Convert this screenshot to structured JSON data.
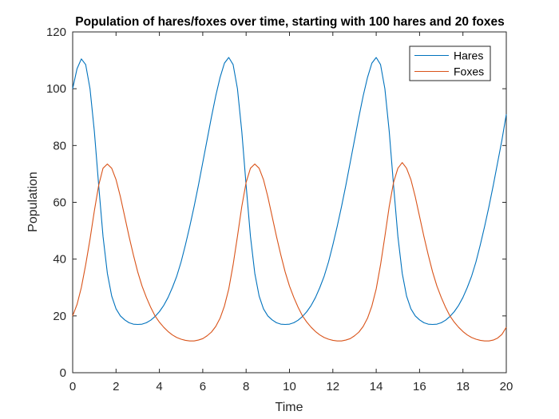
{
  "chart_data": {
    "type": "line",
    "title": "Population of hares/foxes over time, starting with 100 hares and 20 foxes",
    "xlabel": "Time",
    "ylabel": "Population",
    "xlim": [
      0,
      20
    ],
    "ylim": [
      0,
      120
    ],
    "xticks": [
      "0",
      "2",
      "4",
      "6",
      "8",
      "10",
      "12",
      "14",
      "16",
      "18",
      "20"
    ],
    "yticks": [
      "0",
      "20",
      "40",
      "60",
      "80",
      "100",
      "120"
    ],
    "grid": false,
    "legend_position": "top-right",
    "x": [
      0,
      0.2,
      0.4,
      0.6,
      0.8,
      1.0,
      1.2,
      1.4,
      1.6,
      1.8,
      2.0,
      2.2,
      2.4,
      2.6,
      2.8,
      3.0,
      3.2,
      3.4,
      3.6,
      3.8,
      4.0,
      4.2,
      4.4,
      4.6,
      4.8,
      5.0,
      5.2,
      5.4,
      5.6,
      5.8,
      6.0,
      6.2,
      6.4,
      6.6,
      6.8,
      7.0,
      7.2,
      7.4,
      7.6,
      7.8,
      8.0,
      8.2,
      8.4,
      8.6,
      8.8,
      9.0,
      9.2,
      9.4,
      9.6,
      9.8,
      10.0,
      10.2,
      10.4,
      10.6,
      10.8,
      11.0,
      11.2,
      11.4,
      11.6,
      11.8,
      12.0,
      12.2,
      12.4,
      12.6,
      12.8,
      13.0,
      13.2,
      13.4,
      13.6,
      13.8,
      14.0,
      14.2,
      14.4,
      14.6,
      14.8,
      15.0,
      15.2,
      15.4,
      15.6,
      15.8,
      16.0,
      16.2,
      16.4,
      16.6,
      16.8,
      17.0,
      17.2,
      17.4,
      17.6,
      17.8,
      18.0,
      18.2,
      18.4,
      18.6,
      18.8,
      19.0,
      19.2,
      19.4,
      19.6,
      19.8,
      20.0
    ],
    "series": [
      {
        "name": "Hares",
        "color": "#0072BD",
        "values": [
          100,
          107,
          110.5,
          108.5,
          100,
          85,
          66,
          48,
          35,
          27,
          22.5,
          20,
          18.6,
          17.6,
          17.1,
          17,
          17.1,
          17.6,
          18.5,
          19.8,
          21.5,
          23.7,
          26.5,
          30,
          34,
          39,
          45,
          51.5,
          58.5,
          66,
          74,
          82,
          90,
          97.5,
          104,
          109,
          111,
          108.5,
          100,
          85,
          66,
          48,
          35,
          27,
          22.5,
          20,
          18.6,
          17.6,
          17.1,
          17,
          17.1,
          17.6,
          18.5,
          19.8,
          21.5,
          23.7,
          26.5,
          30,
          34,
          39,
          45,
          51.5,
          58.5,
          66,
          74,
          82,
          90,
          97.5,
          104,
          109,
          111,
          108.5,
          100,
          85,
          66,
          48,
          35,
          27,
          22.5,
          20,
          18.6,
          17.6,
          17.1,
          17,
          17.1,
          17.6,
          18.5,
          19.8,
          21.5,
          23.7,
          26.5,
          30,
          34,
          39,
          45,
          51.5,
          58.5,
          66,
          74,
          82,
          91
        ]
      },
      {
        "name": "Foxes",
        "color": "#D95319",
        "values": [
          20,
          24,
          30,
          38,
          47,
          57,
          66,
          72,
          73.5,
          72,
          68,
          62,
          55,
          48,
          41.5,
          35.5,
          30.5,
          26.5,
          23,
          20,
          17.8,
          16,
          14.5,
          13.3,
          12.4,
          11.8,
          11.4,
          11.2,
          11.2,
          11.5,
          12,
          13,
          14.3,
          16.3,
          19.2,
          23.5,
          29.5,
          38,
          48,
          58.5,
          67,
          72,
          73.5,
          72,
          68,
          62,
          55,
          48,
          41.5,
          35.5,
          30.5,
          26.5,
          23,
          20,
          17.8,
          16,
          14.5,
          13.3,
          12.4,
          11.8,
          11.4,
          11.2,
          11.2,
          11.5,
          12,
          13,
          14.3,
          16.3,
          19.2,
          23.5,
          29.5,
          38,
          48,
          58.5,
          67,
          72,
          74,
          72,
          68,
          62,
          55,
          48,
          41.5,
          35.5,
          30.5,
          26.5,
          23,
          20,
          17.8,
          16,
          14.5,
          13.3,
          12.4,
          11.8,
          11.4,
          11.2,
          11.2,
          11.5,
          12.2,
          13.5,
          16
        ]
      }
    ]
  }
}
